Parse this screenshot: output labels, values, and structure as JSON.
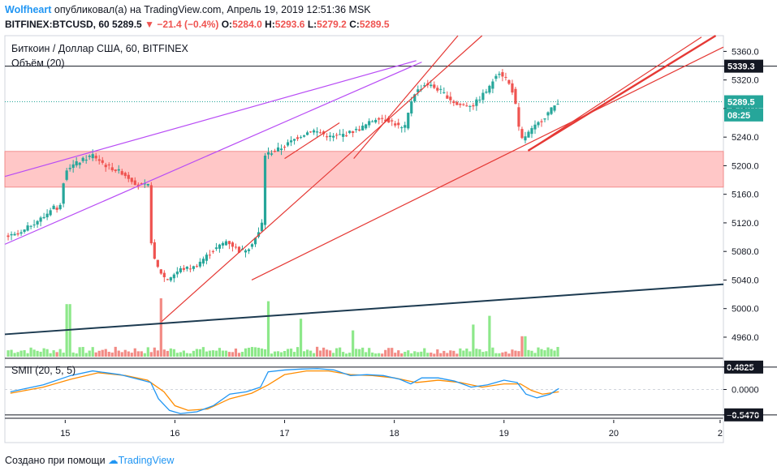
{
  "header": {
    "author": "Wolfheart",
    "published_text": "опубликовал(а) на TradingView.com, Апрель 19, 2019 12:51:36 MSK",
    "symbol_line": {
      "symbol": "BITFINEX:BTCUSD, 60",
      "price": "5289.5",
      "change": "−21.4 (−0.4%)",
      "o_label": "O:",
      "o": "5284.0",
      "h_label": "H:",
      "h": "5293.6",
      "l_label": "L:",
      "l": "5279.2",
      "c_label": "C:",
      "c": "5289.5"
    }
  },
  "footer": {
    "created_with": "Создано при помощи",
    "brand": "TradingView"
  },
  "colors": {
    "up": "#26a69a",
    "down": "#ef5350",
    "vol_up": "#8de88a",
    "vol_down": "#f28b85",
    "zone_fill": "#ffc7c7",
    "accent": "#2196f3",
    "smii": "#2196f3",
    "signal": "#ff8c00",
    "purple": "#b84cf5",
    "red_line": "#e53935",
    "navy_line": "#1c3a50"
  },
  "chart_data": {
    "type": "candlestick",
    "title": "Биткоин / Доллар США, 60, BITFINEX",
    "volume_label": "Объём (20)",
    "indicator_label": "SMII (20, 5, 5)",
    "price_axis": {
      "ylim": [
        4935,
        5382
      ],
      "ticks": [
        "5360.0",
        "5320.0",
        "5280.0",
        "5240.0",
        "5200.0",
        "5160.0",
        "5120.0",
        "5080.0",
        "5040.0",
        "5000.0",
        "4960.0"
      ],
      "tick_values": [
        5360,
        5320,
        5280,
        5240,
        5200,
        5160,
        5120,
        5080,
        5040,
        5000,
        4960
      ],
      "badges": [
        {
          "label": "5339.3",
          "value": 5339.3,
          "style": "dark"
        },
        {
          "label": "5289.5",
          "value": 5289.5,
          "style": "green"
        },
        {
          "label": "08:25",
          "value": 5271,
          "style": "green"
        }
      ]
    },
    "indicator_axis": {
      "ylim": [
        -0.62,
        0.55
      ],
      "ticks": [
        "0.4825",
        "0.0000",
        "−0.5470"
      ],
      "tick_values": [
        0.4825,
        0.0,
        -0.547
      ]
    },
    "x_axis": {
      "xlim": [
        14.45,
        21.0
      ],
      "ticks": [
        "15",
        "16",
        "17",
        "18",
        "19",
        "20",
        "2"
      ],
      "tick_values": [
        15,
        16,
        17,
        18,
        19,
        20,
        20.97
      ]
    },
    "price_path": [
      [
        14.48,
        5100
      ],
      [
        14.62,
        5104
      ],
      [
        14.72,
        5118
      ],
      [
        14.85,
        5130
      ],
      [
        14.92,
        5145
      ],
      [
        14.97,
        5133
      ],
      [
        15.03,
        5195
      ],
      [
        15.15,
        5205
      ],
      [
        15.28,
        5215
      ],
      [
        15.4,
        5200
      ],
      [
        15.55,
        5190
      ],
      [
        15.7,
        5172
      ],
      [
        15.79,
        5172
      ],
      [
        15.82,
        5075
      ],
      [
        15.88,
        5055
      ],
      [
        15.95,
        5040
      ],
      [
        16.08,
        5055
      ],
      [
        16.2,
        5058
      ],
      [
        16.35,
        5078
      ],
      [
        16.5,
        5095
      ],
      [
        16.62,
        5080
      ],
      [
        16.7,
        5085
      ],
      [
        16.82,
        5112
      ],
      [
        16.85,
        5215
      ],
      [
        17.0,
        5225
      ],
      [
        17.15,
        5240
      ],
      [
        17.28,
        5250
      ],
      [
        17.45,
        5240
      ],
      [
        17.6,
        5245
      ],
      [
        17.72,
        5252
      ],
      [
        17.88,
        5268
      ],
      [
        18.0,
        5262
      ],
      [
        18.12,
        5250
      ],
      [
        18.2,
        5300
      ],
      [
        18.32,
        5315
      ],
      [
        18.45,
        5305
      ],
      [
        18.6,
        5285
      ],
      [
        18.75,
        5285
      ],
      [
        18.9,
        5310
      ],
      [
        18.97,
        5333
      ],
      [
        19.05,
        5322
      ],
      [
        19.12,
        5300
      ],
      [
        19.18,
        5235
      ],
      [
        19.28,
        5250
      ],
      [
        19.38,
        5265
      ],
      [
        19.52,
        5289.5
      ]
    ],
    "resistance_zone": [
      5170,
      5220
    ],
    "horizontal_levels": [
      5339.3,
      5289.5
    ],
    "trendlines": [
      {
        "color": "purple",
        "x1": 14.45,
        "y1": 5185,
        "x2": 18.2,
        "y2": 5347,
        "width": 1.2
      },
      {
        "color": "purple",
        "x1": 14.45,
        "y1": 5090,
        "x2": 18.25,
        "y2": 5345,
        "width": 1.2
      },
      {
        "color": "red_line",
        "x1": 17.0,
        "y1": 5210,
        "x2": 17.5,
        "y2": 5260,
        "width": 1.2
      },
      {
        "color": "red_line",
        "x1": 17.63,
        "y1": 5210,
        "x2": 18.58,
        "y2": 5382,
        "width": 1.2
      },
      {
        "color": "red_line",
        "x1": 15.88,
        "y1": 4982,
        "x2": 18.8,
        "y2": 5382,
        "width": 1.2
      },
      {
        "color": "red_line",
        "x1": 16.7,
        "y1": 5040,
        "x2": 21.0,
        "y2": 5366,
        "width": 1.2
      },
      {
        "color": "red_line",
        "x1": 19.22,
        "y1": 5221,
        "x2": 20.8,
        "y2": 5380,
        "width": 1.2
      },
      {
        "color": "red_line",
        "x1": 19.22,
        "y1": 5221,
        "x2": 20.93,
        "y2": 5382,
        "width": 2.4
      },
      {
        "color": "navy_line",
        "x1": 14.45,
        "y1": 4964,
        "x2": 21.0,
        "y2": 5034,
        "width": 2
      }
    ],
    "smii_path": [
      [
        14.5,
        -0.05
      ],
      [
        14.8,
        0.1
      ],
      [
        15.05,
        0.3
      ],
      [
        15.25,
        0.4
      ],
      [
        15.5,
        0.32
      ],
      [
        15.7,
        0.2
      ],
      [
        15.78,
        0.15
      ],
      [
        15.85,
        -0.2
      ],
      [
        15.95,
        -0.45
      ],
      [
        16.05,
        -0.52
      ],
      [
        16.2,
        -0.48
      ],
      [
        16.35,
        -0.35
      ],
      [
        16.5,
        -0.1
      ],
      [
        16.65,
        -0.05
      ],
      [
        16.78,
        0.05
      ],
      [
        16.85,
        0.38
      ],
      [
        17.0,
        0.42
      ],
      [
        17.15,
        0.44
      ],
      [
        17.3,
        0.45
      ],
      [
        17.45,
        0.42
      ],
      [
        17.6,
        0.3
      ],
      [
        17.75,
        0.32
      ],
      [
        17.9,
        0.3
      ],
      [
        18.05,
        0.22
      ],
      [
        18.15,
        0.12
      ],
      [
        18.25,
        0.25
      ],
      [
        18.4,
        0.25
      ],
      [
        18.55,
        0.18
      ],
      [
        18.7,
        0.05
      ],
      [
        18.85,
        0.1
      ],
      [
        19.0,
        0.2
      ],
      [
        19.12,
        0.15
      ],
      [
        19.2,
        -0.1
      ],
      [
        19.3,
        -0.18
      ],
      [
        19.42,
        -0.1
      ],
      [
        19.5,
        0.02
      ]
    ],
    "signal_path": [
      [
        14.5,
        -0.08
      ],
      [
        14.8,
        0.05
      ],
      [
        15.05,
        0.22
      ],
      [
        15.3,
        0.36
      ],
      [
        15.55,
        0.3
      ],
      [
        15.75,
        0.2
      ],
      [
        15.9,
        -0.05
      ],
      [
        16.0,
        -0.35
      ],
      [
        16.12,
        -0.45
      ],
      [
        16.3,
        -0.42
      ],
      [
        16.5,
        -0.2
      ],
      [
        16.7,
        -0.08
      ],
      [
        16.85,
        0.1
      ],
      [
        17.0,
        0.32
      ],
      [
        17.2,
        0.4
      ],
      [
        17.4,
        0.4
      ],
      [
        17.6,
        0.32
      ],
      [
        17.8,
        0.3
      ],
      [
        18.0,
        0.25
      ],
      [
        18.2,
        0.15
      ],
      [
        18.4,
        0.2
      ],
      [
        18.6,
        0.15
      ],
      [
        18.8,
        0.05
      ],
      [
        19.0,
        0.12
      ],
      [
        19.15,
        0.12
      ],
      [
        19.25,
        -0.02
      ],
      [
        19.35,
        -0.1
      ],
      [
        19.5,
        -0.05
      ]
    ],
    "volume_spikes": [
      {
        "x": 15.03,
        "v": 0.9
      },
      {
        "x": 15.88,
        "v": 1.0
      },
      {
        "x": 16.85,
        "v": 0.95
      },
      {
        "x": 17.15,
        "v": 0.65
      },
      {
        "x": 18.72,
        "v": 0.55
      },
      {
        "x": 18.87,
        "v": 0.7
      },
      {
        "x": 17.63,
        "v": 0.45
      },
      {
        "x": 19.18,
        "v": 0.35
      }
    ]
  }
}
